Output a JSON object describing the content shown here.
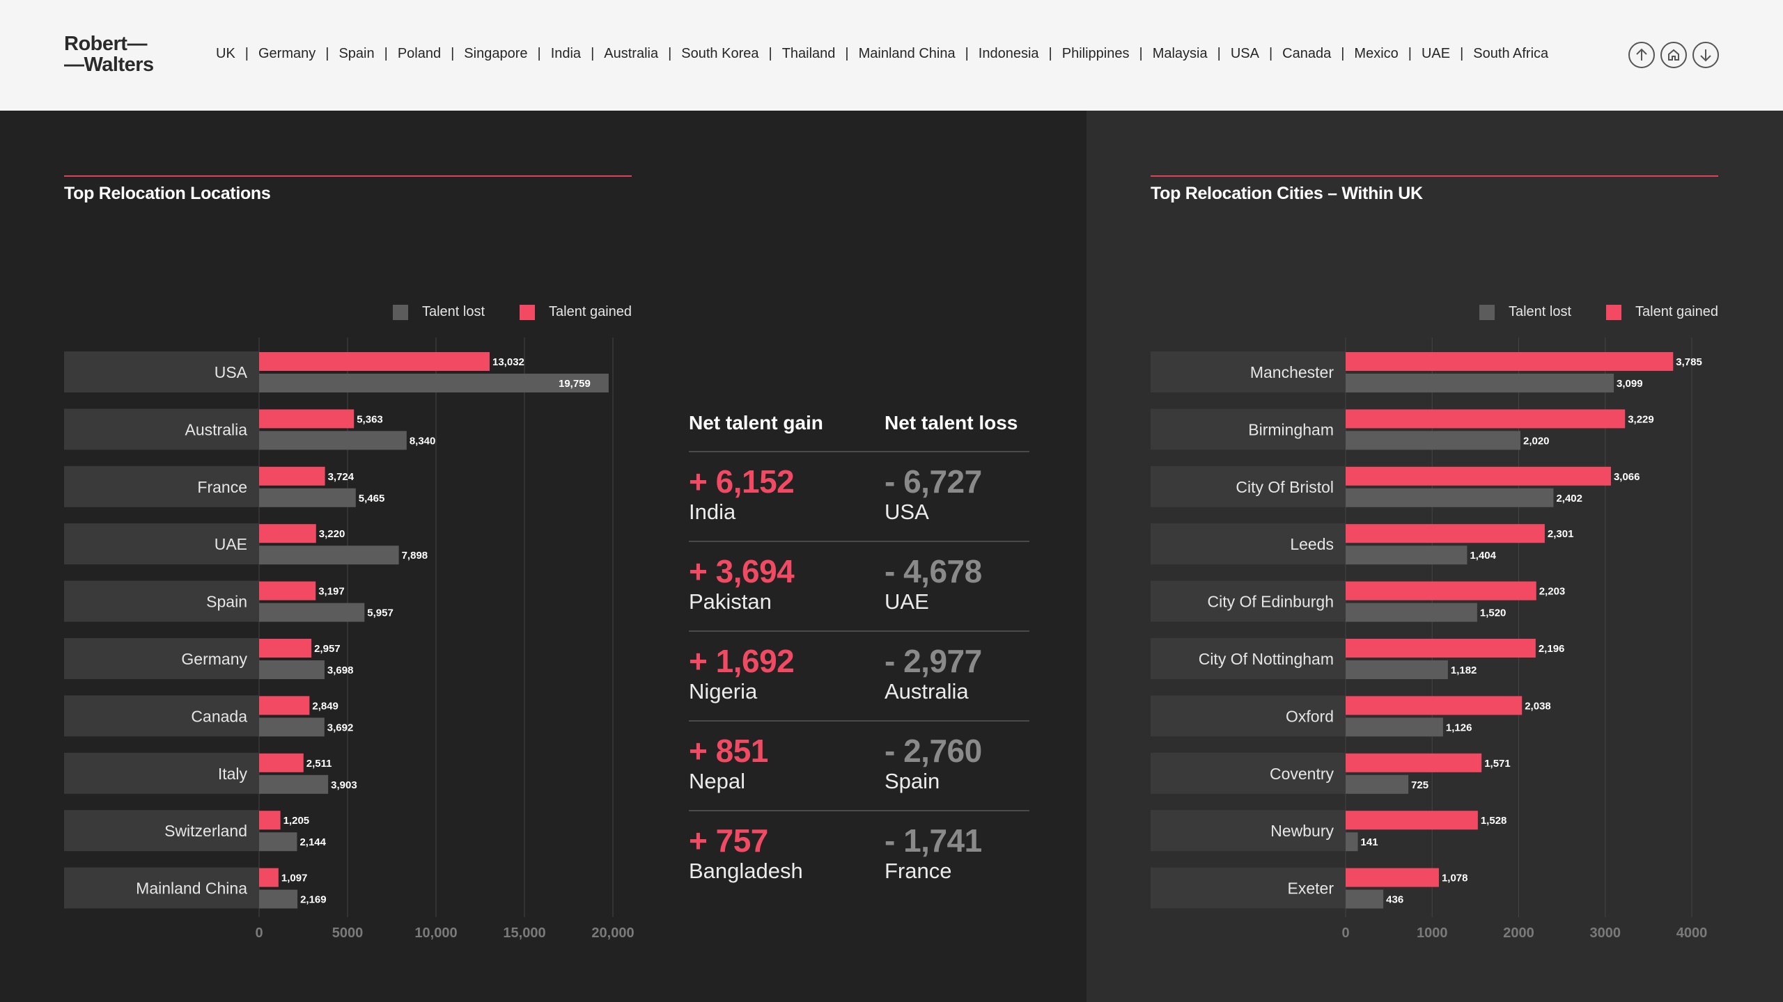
{
  "header": {
    "logo_line1": "Robert—",
    "logo_line2": "—Walters",
    "nav": [
      "UK",
      "Germany",
      "Spain",
      "Poland",
      "Singapore",
      "India",
      "Australia",
      "South Korea",
      "Thailand",
      "Mainland China",
      "Indonesia",
      "Philippines",
      "Malaysia",
      "USA",
      "Canada",
      "Mexico",
      "UAE",
      "South Africa"
    ],
    "icons": [
      "arrow-up-circle-icon",
      "home-circle-icon",
      "arrow-down-circle-icon"
    ]
  },
  "colors": {
    "gained": "#f24a63",
    "lost": "#5c5c5c",
    "accent": "#e0425b"
  },
  "locations": {
    "title": "Top Relocation Locations",
    "legend_lost": "Talent lost",
    "legend_gained": "Talent gained"
  },
  "cities": {
    "title": "Top Relocation Cities – Within UK",
    "legend_lost": "Talent lost",
    "legend_gained": "Talent gained"
  },
  "net": {
    "gain_header": "Net talent gain",
    "loss_header": "Net talent loss",
    "rows": [
      {
        "gain_value": "+ 6,152",
        "gain_name": "India",
        "loss_value": "- 6,727",
        "loss_name": "USA"
      },
      {
        "gain_value": "+ 3,694",
        "gain_name": "Pakistan",
        "loss_value": "- 4,678",
        "loss_name": "UAE"
      },
      {
        "gain_value": "+ 1,692",
        "gain_name": "Nigeria",
        "loss_value": "- 2,977",
        "loss_name": "Australia"
      },
      {
        "gain_value": "+ 851",
        "gain_name": "Nepal",
        "loss_value": "- 2,760",
        "loss_name": "Spain"
      },
      {
        "gain_value": "+ 757",
        "gain_name": "Bangladesh",
        "loss_value": "- 1,741",
        "loss_name": "France"
      }
    ]
  },
  "chart_data": [
    {
      "type": "bar",
      "orientation": "horizontal",
      "title": "Top Relocation Locations",
      "categories": [
        "USA",
        "Australia",
        "France",
        "UAE",
        "Spain",
        "Germany",
        "Canada",
        "Italy",
        "Switzerland",
        "Mainland China"
      ],
      "series": [
        {
          "name": "Talent gained",
          "values": [
            13032,
            5363,
            3724,
            3220,
            3197,
            2957,
            2849,
            2511,
            1205,
            1097
          ]
        },
        {
          "name": "Talent lost",
          "values": [
            19759,
            8340,
            5465,
            7898,
            5957,
            3698,
            3692,
            3903,
            2144,
            2169
          ]
        }
      ],
      "value_labels": {
        "Talent gained": [
          "13,032",
          "5,363",
          "3,724",
          "3,220",
          "3,197",
          "2,957",
          "2,849",
          "2,511",
          "1,205",
          "1,097"
        ],
        "Talent lost": [
          "19,759",
          "8,340",
          "5,465",
          "7,898",
          "5,957",
          "3,698",
          "3,692",
          "3,903",
          "2,144",
          "2,169"
        ]
      },
      "xlim": [
        0,
        20000
      ],
      "xticks": [
        0,
        5000,
        10000,
        15000,
        20000
      ],
      "xtick_labels": [
        "0",
        "5000",
        "10,000",
        "15,000",
        "20,000"
      ],
      "grid": true,
      "legend": "top-right"
    },
    {
      "type": "bar",
      "orientation": "horizontal",
      "title": "Top Relocation Cities – Within UK",
      "categories": [
        "Manchester",
        "Birmingham",
        "City Of Bristol",
        "Leeds",
        "City Of Edinburgh",
        "City Of Nottingham",
        "Oxford",
        "Coventry",
        "Newbury",
        "Exeter"
      ],
      "series": [
        {
          "name": "Talent gained",
          "values": [
            3785,
            3229,
            3066,
            2301,
            2203,
            2196,
            2038,
            1571,
            1528,
            1078
          ]
        },
        {
          "name": "Talent lost",
          "values": [
            3099,
            2020,
            2402,
            1404,
            1520,
            1182,
            1126,
            725,
            141,
            436
          ]
        }
      ],
      "value_labels": {
        "Talent gained": [
          "3,785",
          "3,229",
          "3,066",
          "2,301",
          "2,203",
          "2,196",
          "2,038",
          "1,571",
          "1,528",
          "1,078"
        ],
        "Talent lost": [
          "3,099",
          "2,020",
          "2,402",
          "1,404",
          "1,520",
          "1,182",
          "1,126",
          "725",
          "141",
          "436"
        ]
      },
      "xlim": [
        0,
        4000
      ],
      "xticks": [
        0,
        1000,
        2000,
        3000,
        4000
      ],
      "xtick_labels": [
        "0",
        "1000",
        "2000",
        "3000",
        "4000"
      ],
      "grid": true,
      "legend": "top-right"
    }
  ]
}
